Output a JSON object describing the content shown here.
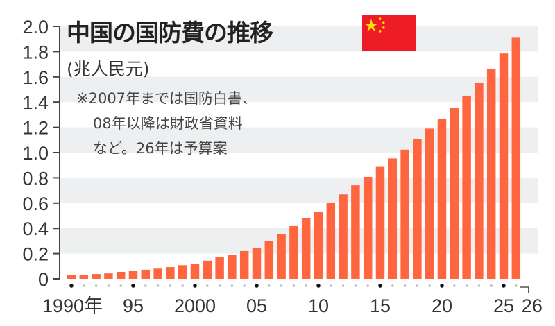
{
  "chart_data": {
    "type": "bar",
    "title": "中国の国防費の推移",
    "unit_label": "(兆人民元)",
    "note": [
      "※2007年までは国防白書、",
      "08年以降は財政省資料",
      "など。26年は予算案"
    ],
    "categories": [
      1990,
      1991,
      1992,
      1993,
      1994,
      1995,
      1996,
      1997,
      1998,
      1999,
      2000,
      2001,
      2002,
      2003,
      2004,
      2005,
      2006,
      2007,
      2008,
      2009,
      2010,
      2011,
      2012,
      2013,
      2014,
      2015,
      2016,
      2017,
      2018,
      2019,
      2020,
      2021,
      2022,
      2023,
      2024,
      2025,
      2026
    ],
    "values": [
      0.029,
      0.033,
      0.038,
      0.043,
      0.055,
      0.064,
      0.072,
      0.081,
      0.093,
      0.108,
      0.121,
      0.144,
      0.171,
      0.191,
      0.22,
      0.247,
      0.298,
      0.355,
      0.418,
      0.483,
      0.533,
      0.603,
      0.669,
      0.741,
      0.808,
      0.887,
      0.954,
      1.023,
      1.107,
      1.19,
      1.268,
      1.355,
      1.451,
      1.554,
      1.665,
      1.785,
      1.91
    ],
    "ylim": [
      0,
      2.0
    ],
    "yticks": [
      "0",
      "0.2",
      "0.4",
      "0.6",
      "0.8",
      "1.0",
      "1.2",
      "1.4",
      "1.6",
      "1.8",
      "2.0"
    ],
    "xtick_labels": [
      {
        "year": 1990,
        "label": "1990年"
      },
      {
        "year": 1995,
        "label": "95"
      },
      {
        "year": 2000,
        "label": "2000"
      },
      {
        "year": 2005,
        "label": "05"
      },
      {
        "year": 2010,
        "label": "10"
      },
      {
        "year": 2015,
        "label": "15"
      },
      {
        "year": 2020,
        "label": "20"
      },
      {
        "year": 2025,
        "label": "25"
      },
      {
        "year": 2026,
        "label": "26"
      }
    ],
    "grid": "alternating horizontal bands",
    "colors": {
      "bar": "#ff6640",
      "band": "#eeeff1",
      "axis": "#444444"
    }
  },
  "flag_icon": "china-flag-icon"
}
